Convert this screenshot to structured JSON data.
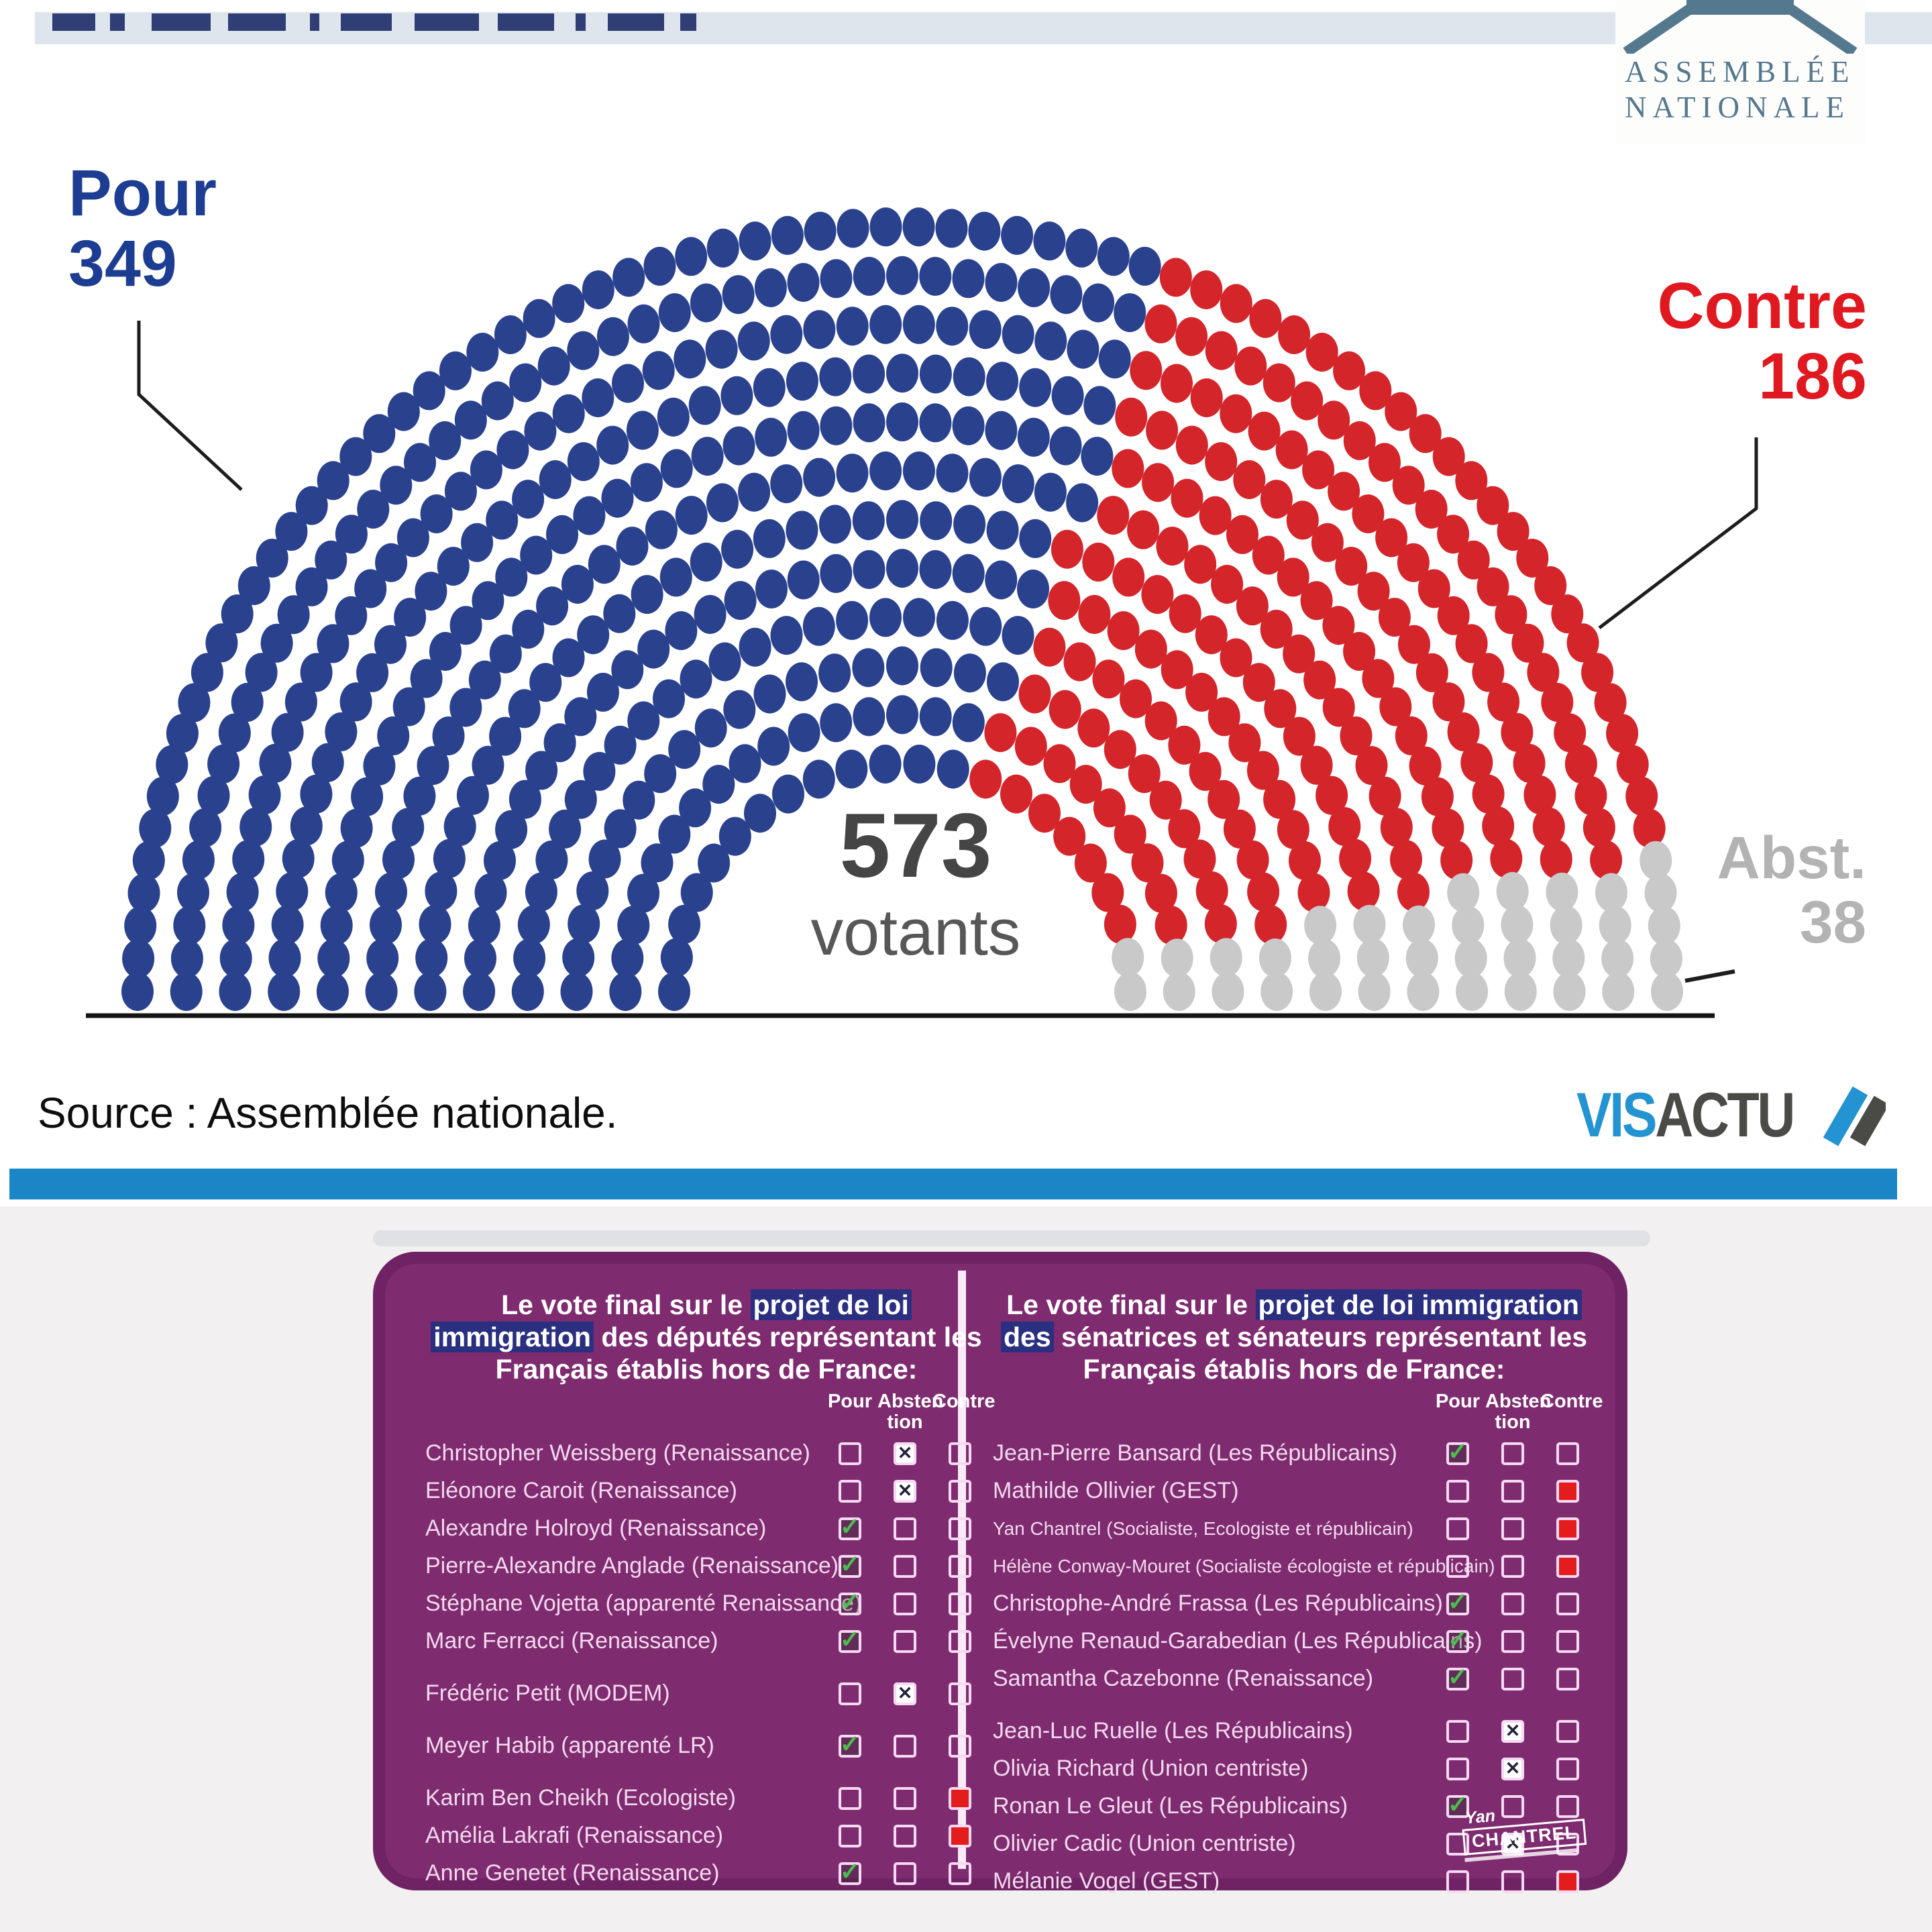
{
  "logo_an": {
    "line1": "ASSEMBLÉE",
    "line2": "NATIONALE"
  },
  "source": {
    "text": "Source : Assemblée nationale."
  },
  "visactu": {
    "part1": "VIS",
    "part2": "ACTU",
    "color1": "#2493d2",
    "color2": "#4a4a46"
  },
  "watermark": {
    "line1": "Yan",
    "line2": "CHANTREL"
  },
  "theme": {
    "top_strip": "#dee5ec",
    "headline_fragment_color": "#20306b",
    "an_logo_color": "#54788d",
    "blue_bar": "#1a86c5",
    "card_purple": "#7e2b6f",
    "card_border_pink": "#f0cbe9",
    "title_highlight": "#2b2f80",
    "checkbox_red": "#e51c1c",
    "checkbox_green": "#4cbf4f"
  },
  "chart_data": [
    {
      "type": "parliament",
      "title": "",
      "total": {
        "value": "573",
        "label": "votants"
      },
      "groups": [
        {
          "name": "Pour",
          "value": 349,
          "color": "#2a418e",
          "label_color": "#1c3d91"
        },
        {
          "name": "Contre",
          "value": 186,
          "color": "#d4252a",
          "label_color": "#e01820"
        },
        {
          "name": "Abst.",
          "value": 38,
          "color": "#c9c9c9",
          "label_color": "#b3b3b3"
        }
      ],
      "layout": {
        "rows": 12,
        "inner_radius": 340,
        "outer_radius": 1140,
        "legend_position": "sides",
        "grid": false
      }
    },
    {
      "type": "table",
      "title_pre": "Le vote final sur le ",
      "title_highlight": "projet de loi immigration",
      "title_post": " des députés représentant les Français établis hors de France:",
      "columns": [
        "Pour",
        "Absten\ntion",
        "Contre"
      ],
      "rows": [
        {
          "name": "Christopher Weissberg (Renaissance)",
          "vote": "abstention"
        },
        {
          "name": "Eléonore Caroit (Renaissance)",
          "vote": "abstention"
        },
        {
          "name": "Alexandre Holroyd (Renaissance)",
          "vote": "pour"
        },
        {
          "name": "Pierre-Alexandre Anglade (Renaissance)",
          "vote": "pour"
        },
        {
          "name": "Stéphane Vojetta (apparenté Renaissance)",
          "vote": "pour"
        },
        {
          "name": "Marc Ferracci (Renaissance)",
          "vote": "pour"
        },
        {
          "name": "Frédéric Petit (MODEM)",
          "vote": "abstention"
        },
        {
          "name": "Meyer Habib (apparenté LR)",
          "vote": "pour"
        },
        {
          "name": "Karim Ben Cheikh (Ecologiste)",
          "vote": "contre"
        },
        {
          "name": "Amélia Lakrafi (Renaissance)",
          "vote": "contre"
        },
        {
          "name": "Anne Genetet (Renaissance)",
          "vote": "pour"
        }
      ]
    },
    {
      "type": "table",
      "title_pre": "Le vote final sur le ",
      "title_highlight": "projet de loi immigration des",
      "title_post": " sénatrices et sénateurs représentant les Français établis hors de France:",
      "columns": [
        "Pour",
        "Absten\ntion",
        "Contre"
      ],
      "rows": [
        {
          "name": "Jean-Pierre Bansard (Les Républicains)",
          "vote": "pour"
        },
        {
          "name": "Mathilde Ollivier  (GEST)",
          "vote": "contre"
        },
        {
          "name": "Yan Chantrel (Socialiste, Ecologiste et républicain)",
          "vote": "contre"
        },
        {
          "name": "Hélène Conway-Mouret (Socialiste écologiste et républicain)",
          "vote": "contre"
        },
        {
          "name": "Christophe-André Frassa (Les Républicains)",
          "vote": "pour"
        },
        {
          "name": "Évelyne Renaud-Garabedian (Les Républicains)",
          "vote": "pour"
        },
        {
          "name": "Samantha Cazebonne (Renaissance)",
          "vote": "pour"
        },
        {
          "name": "Jean-Luc Ruelle (Les Républicains)",
          "vote": "abstention"
        },
        {
          "name": "Olivia Richard (Union centriste)",
          "vote": "abstention"
        },
        {
          "name": "Ronan Le Gleut (Les Républicains)",
          "vote": "pour"
        },
        {
          "name": "Olivier Cadic (Union centriste)",
          "vote": "abstention"
        },
        {
          "name": "Mélanie Vogel (GEST)",
          "vote": "contre"
        }
      ]
    }
  ]
}
